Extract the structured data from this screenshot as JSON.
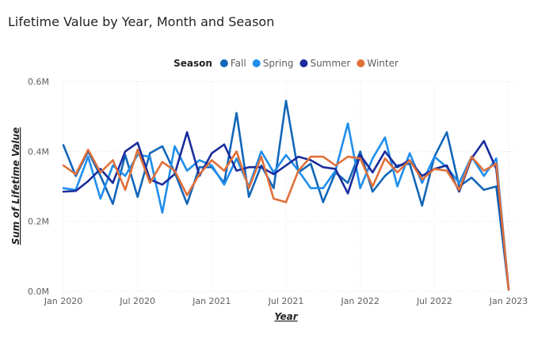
{
  "chart_data": {
    "type": "line",
    "title": "Lifetime Value by Year, Month and Season",
    "xlabel": "Year",
    "ylabel": "Sum of Lifetime Value",
    "ylim": [
      0,
      600000
    ],
    "y_ticks": [
      {
        "value": 0,
        "label": "0.0M"
      },
      {
        "value": 200000,
        "label": "0.2M"
      },
      {
        "value": 400000,
        "label": "0.4M"
      },
      {
        "value": 600000,
        "label": "0.6M"
      }
    ],
    "x_ticks": [
      {
        "value": 0,
        "label": "Jan 2020"
      },
      {
        "value": 6,
        "label": "Jul 2020"
      },
      {
        "value": 12,
        "label": "Jan 2021"
      },
      {
        "value": 18,
        "label": "Jul 2021"
      },
      {
        "value": 24,
        "label": "Jan 2022"
      },
      {
        "value": 30,
        "label": "Jul 2022"
      },
      {
        "value": 36,
        "label": "Jan 2023"
      }
    ],
    "x_range": [
      0,
      36
    ],
    "grid": "horizontal dotted",
    "legend": {
      "title": "Season",
      "position": "top-center"
    },
    "series": [
      {
        "name": "Fall",
        "color": "#1366b8",
        "values": [
          418000,
          330000,
          400000,
          330000,
          250000,
          390000,
          270000,
          395000,
          415000,
          340000,
          250000,
          355000,
          355000,
          310000,
          510000,
          270000,
          360000,
          295000,
          545000,
          340000,
          365000,
          255000,
          340000,
          310000,
          400000,
          285000,
          330000,
          360000,
          365000,
          245000,
          385000,
          455000,
          300000,
          325000,
          290000,
          300000,
          5000
        ]
      },
      {
        "name": "Spring",
        "color": "#1f8eed",
        "values": [
          295000,
          290000,
          385000,
          265000,
          360000,
          330000,
          390000,
          385000,
          225000,
          415000,
          345000,
          375000,
          360000,
          305000,
          380000,
          300000,
          400000,
          340000,
          390000,
          345000,
          295000,
          295000,
          345000,
          480000,
          295000,
          380000,
          440000,
          300000,
          395000,
          310000,
          385000,
          355000,
          310000,
          385000,
          330000,
          380000,
          5000
        ]
      },
      {
        "name": "Summer",
        "color": "#1a2c9c",
        "values": [
          285000,
          287000,
          315000,
          350000,
          310000,
          400000,
          425000,
          320000,
          305000,
          335000,
          455000,
          330000,
          395000,
          420000,
          345000,
          355000,
          355000,
          335000,
          360000,
          385000,
          375000,
          355000,
          350000,
          280000,
          390000,
          340000,
          400000,
          355000,
          375000,
          330000,
          350000,
          360000,
          285000,
          380000,
          430000,
          350000,
          5000
        ]
      },
      {
        "name": "Winter",
        "color": "#e0703a",
        "values": [
          360000,
          335000,
          405000,
          340000,
          375000,
          290000,
          405000,
          310000,
          370000,
          345000,
          275000,
          335000,
          375000,
          345000,
          400000,
          295000,
          385000,
          265000,
          255000,
          345000,
          385000,
          385000,
          360000,
          385000,
          380000,
          300000,
          380000,
          340000,
          375000,
          320000,
          350000,
          345000,
          290000,
          385000,
          345000,
          365000,
          5000
        ]
      }
    ]
  }
}
